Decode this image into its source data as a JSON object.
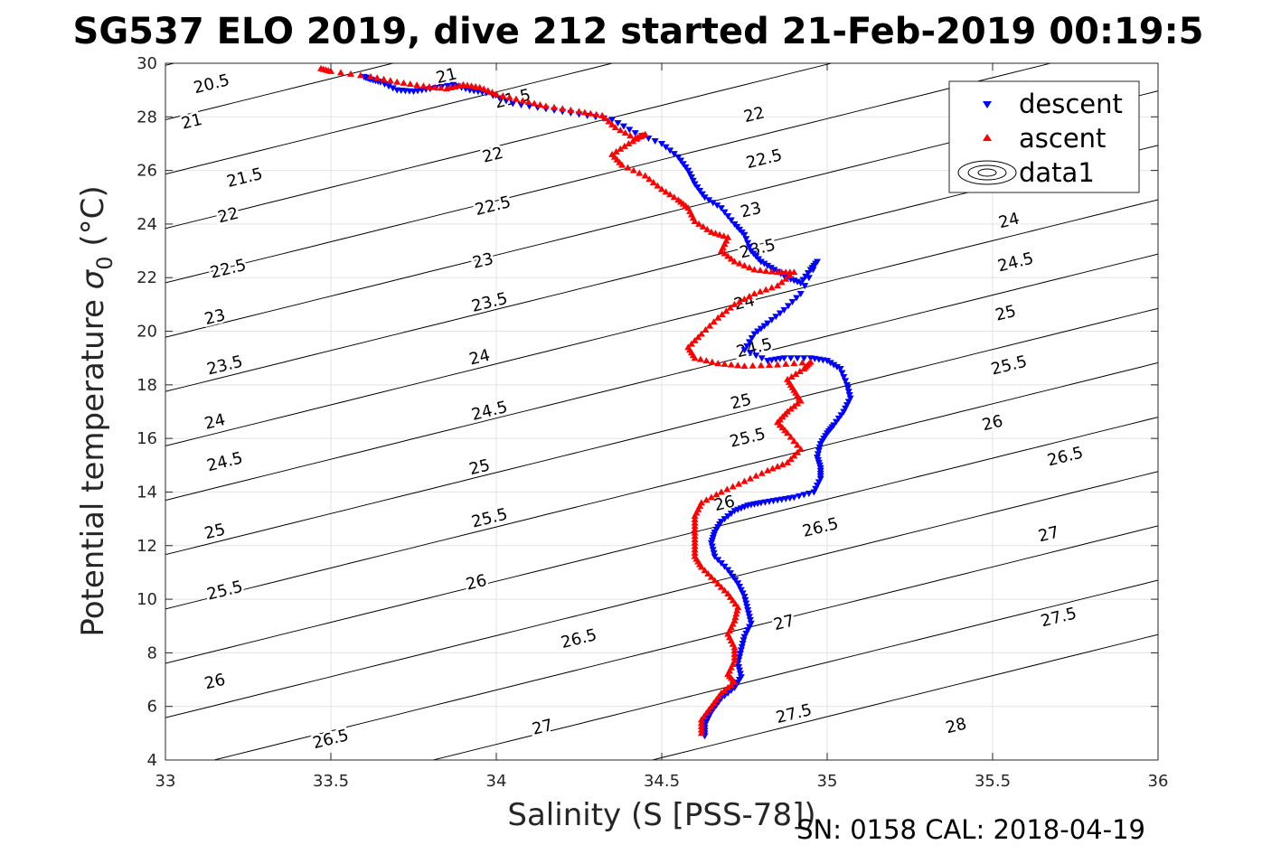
{
  "title": "SG537 ELO 2019, dive 212 started 21-Feb-2019 00:19:5",
  "footer": "SN: 0158  CAL: 2018-04-19",
  "chart_data": {
    "type": "scatter",
    "title": "SG537 ELO 2019, dive 212 started 21-Feb-2019 00:19:5",
    "xlabel": "Salinity (S [PSS-78])",
    "ylabel_main": "Potential temperature ",
    "ylabel_symbol": "σ",
    "ylabel_sub": "0",
    "ylabel_unit": " (°C)",
    "xlim": [
      33,
      36
    ],
    "ylim": [
      4,
      30
    ],
    "xticks": [
      "33",
      "33.5",
      "34",
      "34.5",
      "35",
      "35.5",
      "36"
    ],
    "yticks": [
      "4",
      "6",
      "8",
      "10",
      "12",
      "14",
      "16",
      "18",
      "20",
      "22",
      "24",
      "26",
      "28",
      "30"
    ],
    "grid": true,
    "legend_position": "top-right",
    "legend": [
      "descent",
      "ascent",
      "data1"
    ],
    "colors": {
      "descent": "#0000ff",
      "ascent": "#ff0000",
      "contour": "#000000"
    },
    "contours": {
      "levels": [
        20.5,
        21,
        21.5,
        22,
        22.5,
        23,
        23.5,
        24,
        24.5,
        25,
        25.5,
        26,
        26.5,
        27,
        27.5,
        28
      ],
      "labels": [
        {
          "text": "20.5",
          "s": 33.14,
          "t": 29.2
        },
        {
          "text": "21",
          "s": 33.08,
          "t": 27.8
        },
        {
          "text": "21.5",
          "s": 33.24,
          "t": 25.7
        },
        {
          "text": "22",
          "s": 33.19,
          "t": 24.3
        },
        {
          "text": "22.5",
          "s": 33.19,
          "t": 22.3
        },
        {
          "text": "23",
          "s": 33.15,
          "t": 20.5
        },
        {
          "text": "23.5",
          "s": 33.18,
          "t": 18.7
        },
        {
          "text": "24",
          "s": 33.15,
          "t": 16.6
        },
        {
          "text": "24.5",
          "s": 33.18,
          "t": 15.1
        },
        {
          "text": "25",
          "s": 33.15,
          "t": 12.5
        },
        {
          "text": "25.5",
          "s": 33.18,
          "t": 10.3
        },
        {
          "text": "26",
          "s": 33.15,
          "t": 6.9
        },
        {
          "text": "26.5",
          "s": 33.5,
          "t": 4.75
        },
        {
          "text": "21",
          "s": 33.85,
          "t": 29.5
        },
        {
          "text": "21.5",
          "s": 34.05,
          "t": 28.65
        },
        {
          "text": "22",
          "s": 33.99,
          "t": 26.55
        },
        {
          "text": "22.5",
          "s": 33.99,
          "t": 24.65
        },
        {
          "text": "23",
          "s": 33.96,
          "t": 22.6
        },
        {
          "text": "23.5",
          "s": 33.98,
          "t": 21.05
        },
        {
          "text": "24",
          "s": 33.95,
          "t": 19.0
        },
        {
          "text": "24.5",
          "s": 33.98,
          "t": 17.0
        },
        {
          "text": "25",
          "s": 33.95,
          "t": 14.9
        },
        {
          "text": "25.5",
          "s": 33.98,
          "t": 13.0
        },
        {
          "text": "26",
          "s": 33.94,
          "t": 10.6
        },
        {
          "text": "26.5",
          "s": 34.25,
          "t": 8.5
        },
        {
          "text": "27",
          "s": 34.14,
          "t": 5.2
        },
        {
          "text": "22",
          "s": 34.78,
          "t": 28.05
        },
        {
          "text": "22.5",
          "s": 34.81,
          "t": 26.4
        },
        {
          "text": "23",
          "s": 34.77,
          "t": 24.5
        },
        {
          "text": "23.5",
          "s": 34.79,
          "t": 23.05
        },
        {
          "text": "24",
          "s": 34.75,
          "t": 21.05
        },
        {
          "text": "24.5",
          "s": 34.78,
          "t": 19.35
        },
        {
          "text": "25",
          "s": 34.74,
          "t": 17.35
        },
        {
          "text": "25.5",
          "s": 34.76,
          "t": 16.0
        },
        {
          "text": "26",
          "s": 34.69,
          "t": 13.55
        },
        {
          "text": "26.5",
          "s": 34.98,
          "t": 12.65
        },
        {
          "text": "27",
          "s": 34.87,
          "t": 9.1
        },
        {
          "text": "27.5",
          "s": 34.9,
          "t": 5.7
        },
        {
          "text": "24",
          "s": 35.55,
          "t": 24.1
        },
        {
          "text": "24.5",
          "s": 35.57,
          "t": 22.55
        },
        {
          "text": "25",
          "s": 35.54,
          "t": 20.65
        },
        {
          "text": "25.5",
          "s": 35.55,
          "t": 18.7
        },
        {
          "text": "26",
          "s": 35.5,
          "t": 16.55
        },
        {
          "text": "26.5",
          "s": 35.72,
          "t": 15.3
        },
        {
          "text": "27",
          "s": 35.67,
          "t": 12.4
        },
        {
          "text": "27.5",
          "s": 35.7,
          "t": 9.3
        },
        {
          "text": "28",
          "s": 35.39,
          "t": 5.25
        }
      ]
    },
    "series": [
      {
        "name": "descent",
        "marker": "triangle-down",
        "points": [
          [
            33.6,
            29.5
          ],
          [
            33.62,
            29.4
          ],
          [
            33.65,
            29.3
          ],
          [
            33.7,
            29.0
          ],
          [
            33.75,
            28.95
          ],
          [
            33.8,
            29.05
          ],
          [
            33.87,
            29.2
          ],
          [
            33.92,
            29.0
          ],
          [
            33.97,
            28.9
          ],
          [
            34.05,
            28.5
          ],
          [
            34.15,
            28.3
          ],
          [
            34.25,
            28.1
          ],
          [
            34.35,
            27.9
          ],
          [
            34.42,
            27.4
          ],
          [
            34.5,
            27.0
          ],
          [
            34.55,
            26.5
          ],
          [
            34.58,
            26.0
          ],
          [
            34.6,
            25.5
          ],
          [
            34.63,
            25.0
          ],
          [
            34.68,
            24.6
          ],
          [
            34.72,
            24.0
          ],
          [
            34.75,
            23.6
          ],
          [
            34.77,
            23.0
          ],
          [
            34.8,
            22.6
          ],
          [
            34.84,
            22.3
          ],
          [
            34.88,
            22.0
          ],
          [
            34.92,
            21.8
          ],
          [
            34.95,
            22.3
          ],
          [
            34.97,
            22.6
          ],
          [
            34.92,
            21.4
          ],
          [
            34.87,
            20.8
          ],
          [
            34.82,
            20.3
          ],
          [
            34.78,
            19.9
          ],
          [
            34.75,
            19.3
          ],
          [
            34.82,
            18.9
          ],
          [
            34.87,
            19.0
          ],
          [
            34.95,
            19.0
          ],
          [
            35.0,
            18.9
          ],
          [
            35.04,
            18.6
          ],
          [
            35.06,
            18.0
          ],
          [
            35.07,
            17.5
          ],
          [
            35.05,
            17.0
          ],
          [
            35.02,
            16.5
          ],
          [
            35.0,
            16.2
          ],
          [
            34.98,
            15.8
          ],
          [
            34.97,
            15.3
          ],
          [
            34.98,
            14.9
          ],
          [
            34.98,
            14.5
          ],
          [
            34.96,
            14.0
          ],
          [
            34.9,
            13.8
          ],
          [
            34.85,
            13.7
          ],
          [
            34.8,
            13.6
          ],
          [
            34.76,
            13.5
          ],
          [
            34.72,
            13.3
          ],
          [
            34.68,
            12.9
          ],
          [
            34.66,
            12.5
          ],
          [
            34.65,
            12.1
          ],
          [
            34.66,
            11.6
          ],
          [
            34.7,
            11.1
          ],
          [
            34.73,
            10.6
          ],
          [
            34.75,
            10.1
          ],
          [
            34.76,
            9.6
          ],
          [
            34.77,
            9.1
          ],
          [
            34.75,
            8.6
          ],
          [
            34.74,
            8.1
          ],
          [
            34.73,
            7.6
          ],
          [
            34.74,
            7.1
          ],
          [
            34.72,
            6.7
          ],
          [
            34.68,
            6.3
          ],
          [
            34.65,
            5.8
          ],
          [
            34.63,
            5.3
          ],
          [
            34.63,
            4.9
          ]
        ]
      },
      {
        "name": "ascent",
        "marker": "triangle-up",
        "points": [
          [
            33.47,
            29.8
          ],
          [
            33.5,
            29.7
          ],
          [
            33.62,
            29.5
          ],
          [
            33.7,
            29.3
          ],
          [
            33.78,
            29.15
          ],
          [
            33.85,
            29.05
          ],
          [
            33.9,
            29.2
          ],
          [
            33.95,
            29.1
          ],
          [
            34.0,
            28.85
          ],
          [
            34.08,
            28.6
          ],
          [
            34.15,
            28.4
          ],
          [
            34.25,
            28.2
          ],
          [
            34.32,
            28.05
          ],
          [
            34.36,
            27.6
          ],
          [
            34.42,
            27.2
          ],
          [
            34.45,
            27.35
          ],
          [
            34.4,
            27.0
          ],
          [
            34.35,
            26.6
          ],
          [
            34.38,
            26.2
          ],
          [
            34.45,
            25.8
          ],
          [
            34.5,
            25.3
          ],
          [
            34.55,
            24.9
          ],
          [
            34.58,
            24.6
          ],
          [
            34.6,
            24.1
          ],
          [
            34.65,
            23.7
          ],
          [
            34.7,
            23.5
          ],
          [
            34.68,
            23.0
          ],
          [
            34.72,
            22.6
          ],
          [
            34.78,
            22.3
          ],
          [
            34.85,
            22.2
          ],
          [
            34.9,
            22.2
          ],
          [
            34.85,
            21.7
          ],
          [
            34.78,
            21.4
          ],
          [
            34.72,
            21.0
          ],
          [
            34.67,
            20.5
          ],
          [
            34.62,
            19.9
          ],
          [
            34.58,
            19.4
          ],
          [
            34.6,
            19.0
          ],
          [
            34.67,
            18.8
          ],
          [
            34.75,
            18.7
          ],
          [
            34.85,
            18.75
          ],
          [
            34.95,
            18.85
          ],
          [
            34.93,
            18.6
          ],
          [
            34.88,
            18.2
          ],
          [
            34.9,
            17.8
          ],
          [
            34.92,
            17.4
          ],
          [
            34.88,
            17.0
          ],
          [
            34.85,
            16.6
          ],
          [
            34.88,
            16.2
          ],
          [
            34.92,
            15.6
          ],
          [
            34.88,
            15.1
          ],
          [
            34.82,
            14.8
          ],
          [
            34.75,
            14.4
          ],
          [
            34.68,
            14.0
          ],
          [
            34.62,
            13.6
          ],
          [
            34.6,
            13.1
          ],
          [
            34.6,
            12.6
          ],
          [
            34.6,
            12.1
          ],
          [
            34.6,
            11.6
          ],
          [
            34.62,
            11.2
          ],
          [
            34.66,
            10.7
          ],
          [
            34.7,
            10.2
          ],
          [
            34.73,
            9.7
          ],
          [
            34.72,
            9.2
          ],
          [
            34.7,
            8.7
          ],
          [
            34.72,
            8.2
          ],
          [
            34.72,
            7.7
          ],
          [
            34.7,
            7.2
          ],
          [
            34.72,
            6.9
          ],
          [
            34.68,
            6.5
          ],
          [
            34.65,
            6.0
          ],
          [
            34.62,
            5.5
          ],
          [
            34.62,
            5.0
          ]
        ]
      }
    ]
  }
}
